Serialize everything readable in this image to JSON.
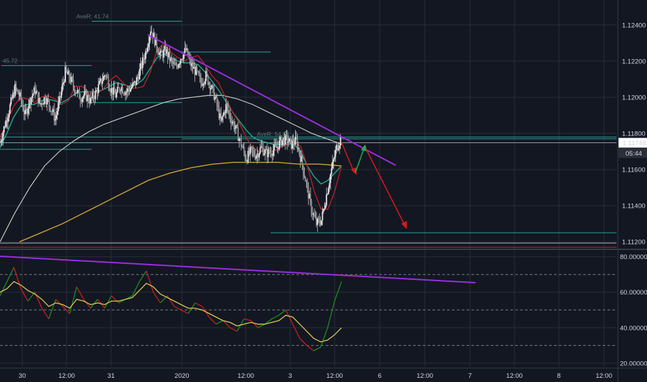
{
  "colors": {
    "background": "#131722",
    "grid": "#2a2e39",
    "candle": "#c9c9c9",
    "ema_red": "#cc2222",
    "ema_teal": "#1fae8e",
    "sma_grey": "#c8c8c0",
    "sma_gold": "#c9a233",
    "trend_purple": "#9a2fd8",
    "level_green": "#26a69a",
    "arrow_red": "#d01c1c",
    "arrow_green": "#22b14c",
    "rsi_green": "#1e8c1e",
    "rsi_red": "#c81e1e",
    "rsi_yellow": "#d8c850",
    "price_tag_bg": "#ffffff",
    "price_tag_text": "#131722"
  },
  "chart_data": [
    {
      "type": "candlestick",
      "instrument_pane": "price",
      "y_tick_labels": [
        "1.12400",
        "1.12200",
        "1.12000",
        "1.11800",
        "1.11600",
        "1.11400",
        "1.11200"
      ],
      "y_ticks": [
        1.124,
        1.122,
        1.12,
        1.118,
        1.116,
        1.114,
        1.112
      ],
      "ylim": [
        1.1117,
        1.1253
      ],
      "current_price_label": "1.11748",
      "current_price": 1.11748,
      "countdown_label": "05:44",
      "annotations": [
        {
          "text": "AveR: 41.74",
          "price": 1.1242
        },
        {
          "text": "45.72",
          "price": 1.12175
        },
        {
          "text": "AveR: 54.04",
          "price": 1.1177
        }
      ],
      "levels": [
        1.1242,
        1.12175,
        1.1225,
        1.1197,
        1.1177,
        1.1178,
        1.11748,
        1.1125
      ],
      "series": [
        {
          "name": "",
          "role": "candles",
          "price_path": [
            1.1175,
            1.1185,
            1.1195,
            1.1205,
            1.12,
            1.119,
            1.1199,
            1.1204,
            1.1196,
            1.12,
            1.1195,
            1.1188,
            1.12,
            1.1214,
            1.121,
            1.1204,
            1.12,
            1.1201,
            1.1198,
            1.1202,
            1.1208,
            1.1213,
            1.1205,
            1.1201,
            1.1206,
            1.1203,
            1.1205,
            1.1208,
            1.1216,
            1.1225,
            1.1238,
            1.123,
            1.1223,
            1.1226,
            1.122,
            1.1216,
            1.1222,
            1.1226,
            1.1218,
            1.1214,
            1.1208,
            1.1212,
            1.1206,
            1.1198,
            1.1186,
            1.1195,
            1.1188,
            1.1182,
            1.1174,
            1.1166,
            1.117,
            1.1168,
            1.1172,
            1.1169,
            1.117,
            1.1172,
            1.1176,
            1.1177,
            1.1174,
            1.1176,
            1.1165,
            1.1152,
            1.1138,
            1.113,
            1.1132,
            1.1146,
            1.116,
            1.1172,
            1.1178
          ]
        },
        {
          "name": "",
          "role": "ema_fast",
          "price_path": [
            1.1178,
            1.1186,
            1.1195,
            1.12,
            1.1199,
            1.1197,
            1.12,
            1.1201,
            1.1199,
            1.1196,
            1.1198,
            1.1206,
            1.1206,
            1.1203,
            1.1202,
            1.1204,
            1.1209,
            1.1212,
            1.1208,
            1.1205,
            1.1205,
            1.1206,
            1.1214,
            1.1226,
            1.123,
            1.1225,
            1.1222,
            1.122,
            1.1222,
            1.1223,
            1.1218,
            1.1212,
            1.1208,
            1.12,
            1.1192,
            1.1186,
            1.1178,
            1.1172,
            1.117,
            1.117,
            1.117,
            1.1172,
            1.1174,
            1.1175,
            1.1173,
            1.1162,
            1.1148,
            1.1138,
            1.1138,
            1.1148,
            1.1162
          ]
        },
        {
          "name": "",
          "role": "ema_slow",
          "price_path": [
            1.1172,
            1.118,
            1.1189,
            1.1195,
            1.1196,
            1.1196,
            1.1198,
            1.1199,
            1.1198,
            1.1197,
            1.1199,
            1.1202,
            1.1203,
            1.1203,
            1.1203,
            1.1204,
            1.1206,
            1.1208,
            1.1207,
            1.1206,
            1.1207,
            1.121,
            1.1216,
            1.1222,
            1.1224,
            1.1222,
            1.122,
            1.1219,
            1.1219,
            1.1218,
            1.1214,
            1.1209,
            1.1204,
            1.1198,
            1.1192,
            1.1187,
            1.1182,
            1.1178,
            1.1176,
            1.1175,
            1.1174,
            1.1174,
            1.1174,
            1.1174,
            1.117,
            1.1162,
            1.1156,
            1.1152,
            1.1154,
            1.1158,
            1.1162
          ]
        },
        {
          "name": "",
          "role": "sma_long",
          "price_path": [
            1.112,
            1.1136,
            1.115,
            1.1162,
            1.117,
            1.1176,
            1.1181,
            1.1185,
            1.1188,
            1.1191,
            1.1194,
            1.1197,
            1.1199,
            1.12,
            1.1201,
            1.1201,
            1.1199,
            1.1196,
            1.1192,
            1.1188,
            1.1184,
            1.118,
            1.1177,
            1.1174
          ]
        },
        {
          "name": "",
          "role": "sma_gold",
          "price_path": [
            1.112,
            1.1125,
            1.113,
            1.1136,
            1.1142,
            1.1148,
            1.1154,
            1.1158,
            1.1161,
            1.1163,
            1.1164,
            1.1164,
            1.1164,
            1.1163,
            1.1163,
            1.1162
          ]
        }
      ]
    },
    {
      "type": "line",
      "instrument_pane": "oscillator",
      "y_tick_labels": [
        "80.00000",
        "60.00000",
        "40.00000",
        "20.00000"
      ],
      "y_ticks": [
        80,
        60,
        40,
        20
      ],
      "ylim": [
        18,
        83
      ],
      "dashed_levels": [
        70,
        50,
        30
      ],
      "series": [
        {
          "name": "",
          "role": "fast",
          "values": [
            58,
            66,
            74,
            62,
            55,
            60,
            51,
            45,
            56,
            52,
            48,
            63,
            56,
            51,
            56,
            51,
            58,
            54,
            56,
            58,
            66,
            72,
            60,
            54,
            58,
            52,
            50,
            48,
            54,
            52,
            46,
            42,
            44,
            40,
            38,
            45,
            44,
            40,
            42,
            45,
            47,
            50,
            42,
            34,
            30,
            27,
            29,
            40,
            55,
            66
          ]
        },
        {
          "name": "",
          "role": "signal",
          "values": [
            60,
            62,
            66,
            64,
            61,
            59,
            56,
            52,
            54,
            53,
            51,
            56,
            55,
            53,
            54,
            53,
            55,
            55,
            56,
            57,
            61,
            65,
            63,
            59,
            57,
            55,
            53,
            51,
            51,
            50,
            48,
            46,
            44,
            43,
            41,
            42,
            43,
            42,
            42,
            43,
            44,
            47,
            46,
            42,
            38,
            34,
            32,
            33,
            36,
            40
          ]
        }
      ]
    }
  ],
  "x_axis": {
    "labels": [
      "30",
      "12:00",
      "31",
      "2020",
      "12:00",
      "3",
      "12:00",
      "6",
      "12:00",
      "7",
      "12:00",
      "8",
      "12:00"
    ]
  }
}
